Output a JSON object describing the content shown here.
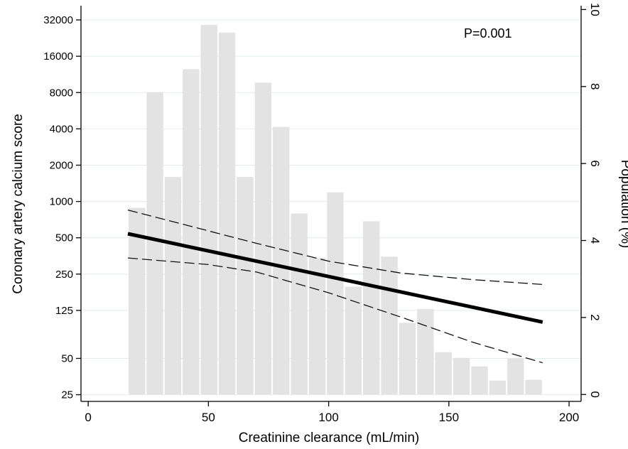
{
  "chart_data": {
    "type": "bar",
    "annotation": "P=0.001",
    "xlabel": "Creatinine clearance (mL/min)",
    "ylabel_left": "Coronary artery calcium score",
    "ylabel_right": "Population (%)",
    "x_ticks": [
      0,
      50,
      100,
      150,
      200
    ],
    "xlim": [
      -3,
      205
    ],
    "y_left_scale": "log2",
    "y_left_ticks": [
      25,
      50,
      125,
      250,
      500,
      1000,
      2000,
      4000,
      8000,
      16000,
      32000
    ],
    "y_left_lim": [
      22,
      42000
    ],
    "y_right_ticks": [
      0,
      2,
      4,
      6,
      8,
      10
    ],
    "y_right_lim": [
      -0.18,
      10.1
    ],
    "grid": "horizontal at left-axis ticks",
    "histogram": {
      "name": "Population (%)",
      "bin_width": 7.5,
      "bin_starts": [
        16.5,
        24,
        31.5,
        39,
        46.5,
        54,
        61.5,
        69,
        76.5,
        84,
        91.5,
        99,
        106.5,
        114,
        121.5,
        129,
        136.5,
        144,
        151.5,
        159,
        166.5,
        174,
        181.5
      ],
      "values": [
        4.85,
        7.85,
        5.65,
        8.45,
        9.6,
        9.4,
        5.65,
        8.1,
        6.95,
        4.7,
        3.55,
        5.25,
        2.8,
        4.5,
        3.58,
        1.86,
        2.22,
        1.1,
        0.95,
        0.73,
        0.36,
        0.93,
        0.38
      ]
    },
    "fit_line": {
      "x": [
        16.5,
        189
      ],
      "y": [
        540,
        100
      ]
    },
    "ci_upper": {
      "x": [
        16.5,
        70,
        100,
        130,
        160,
        189
      ],
      "y": [
        850,
        450,
        320,
        255,
        225,
        205
      ]
    },
    "ci_lower": {
      "x": [
        16.5,
        50,
        70,
        100,
        130,
        160,
        189
      ],
      "y": [
        340,
        300,
        260,
        175,
        110,
        68,
        46
      ]
    }
  }
}
